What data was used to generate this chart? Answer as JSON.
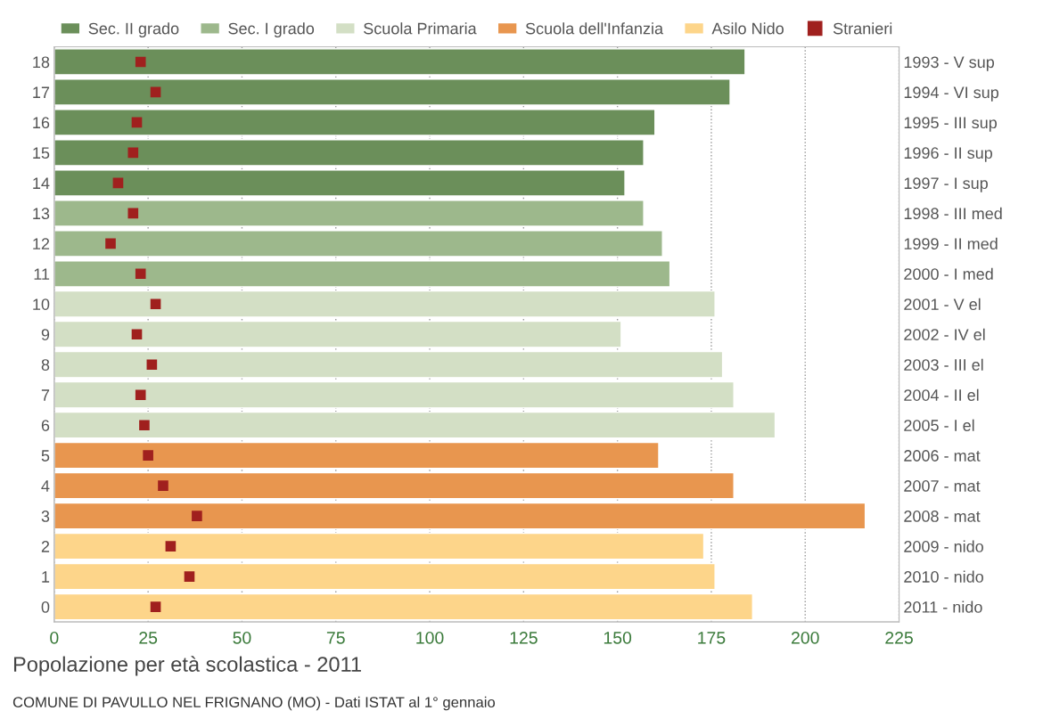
{
  "chart_data": {
    "type": "bar",
    "orientation": "horizontal",
    "title": "Popolazione per età scolastica - 2011",
    "annotations": [
      "COMUNE DI PAVULLO NEL FRIGNANO (MO) - Dati ISTAT al 1° gennaio"
    ],
    "categories": [
      "18",
      "17",
      "16",
      "15",
      "14",
      "13",
      "12",
      "11",
      "10",
      "9",
      "8",
      "7",
      "6",
      "5",
      "4",
      "3",
      "2",
      "1",
      "0"
    ],
    "y2_categories": [
      "1993 - V sup",
      "1994 - VI sup",
      "1995 - III sup",
      "1996 - II sup",
      "1997 - I sup",
      "1998 - III med",
      "1999 - II med",
      "2000 - I med",
      "2001 - V el",
      "2002 - IV el",
      "2003 - III el",
      "2004 - II el",
      "2005 - I el",
      "2006 - mat",
      "2007 - mat",
      "2008 - mat",
      "2009 - nido",
      "2010 - nido",
      "2011 - nido"
    ],
    "series": [
      {
        "name": "Sec. II grado",
        "color": "#6b8f5a",
        "values": [
          184,
          180,
          160,
          157,
          152,
          null,
          null,
          null,
          null,
          null,
          null,
          null,
          null,
          null,
          null,
          null,
          null,
          null,
          null
        ]
      },
      {
        "name": "Sec. I grado",
        "color": "#9db88c",
        "values": [
          null,
          null,
          null,
          null,
          null,
          157,
          162,
          164,
          null,
          null,
          null,
          null,
          null,
          null,
          null,
          null,
          null,
          null,
          null
        ]
      },
      {
        "name": "Scuola Primaria",
        "color": "#d3dfc5",
        "values": [
          null,
          null,
          null,
          null,
          null,
          null,
          null,
          null,
          176,
          151,
          178,
          181,
          192,
          null,
          null,
          null,
          null,
          null,
          null
        ]
      },
      {
        "name": "Scuola dell'Infanzia",
        "color": "#e8964f",
        "values": [
          null,
          null,
          null,
          null,
          null,
          null,
          null,
          null,
          null,
          null,
          null,
          null,
          null,
          161,
          181,
          216,
          null,
          null,
          null
        ]
      },
      {
        "name": "Asilo Nido",
        "color": "#fdd58a",
        "values": [
          null,
          null,
          null,
          null,
          null,
          null,
          null,
          null,
          null,
          null,
          null,
          null,
          null,
          null,
          null,
          null,
          173,
          176,
          186
        ]
      },
      {
        "name": "Stranieri",
        "type": "scatter",
        "marker": "square",
        "color": "#a0201e",
        "values": [
          23,
          27,
          22,
          21,
          17,
          21,
          15,
          23,
          27,
          22,
          26,
          23,
          24,
          25,
          29,
          38,
          31,
          36,
          27
        ]
      }
    ],
    "xlim": [
      0,
      225
    ],
    "xticks": [
      0,
      25,
      50,
      75,
      100,
      125,
      150,
      175,
      200,
      225
    ],
    "grid": "x",
    "legend": "top"
  }
}
